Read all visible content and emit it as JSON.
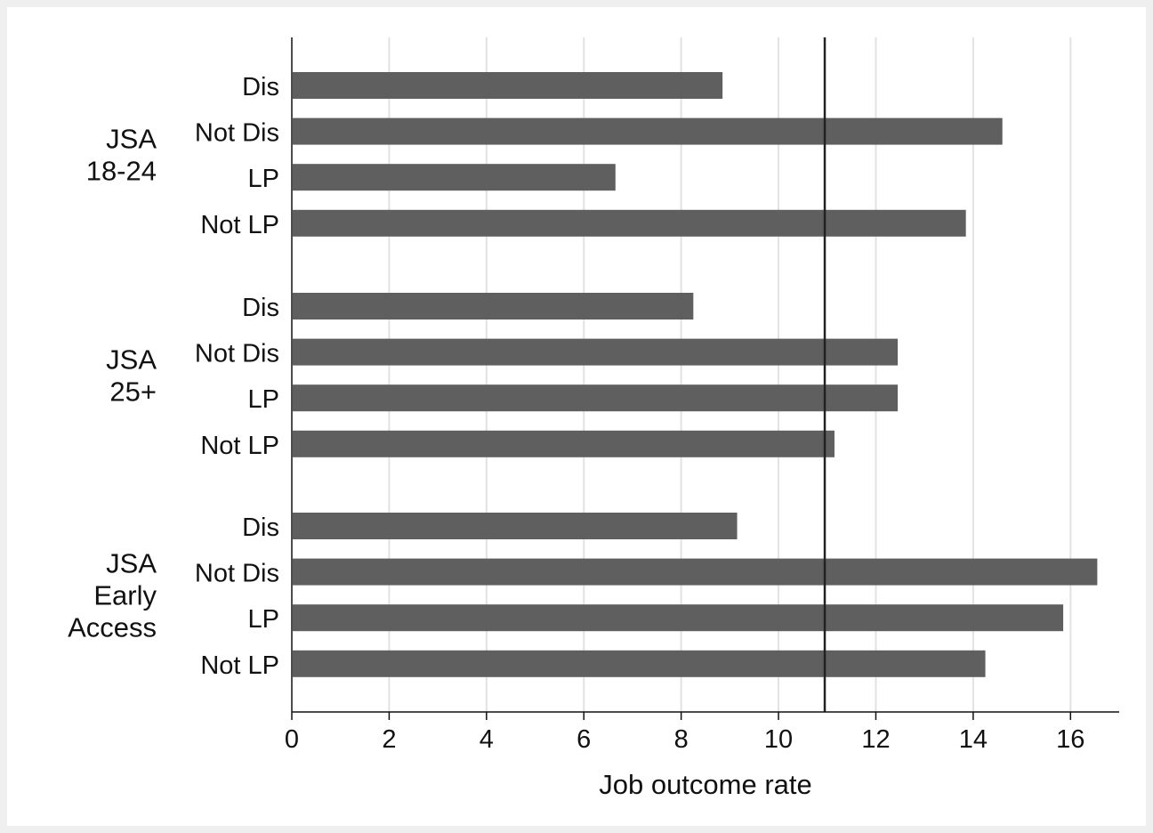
{
  "chart_data": {
    "type": "bar",
    "orientation": "horizontal",
    "xlabel": "Job outcome rate",
    "xlim": [
      0,
      17
    ],
    "xticks": [
      0,
      2,
      4,
      6,
      8,
      10,
      12,
      14,
      16
    ],
    "grid": true,
    "bar_color": "#5f5f5f",
    "reference_line": {
      "value": 10.95,
      "color": "#222222"
    },
    "groups": [
      {
        "label": [
          "JSA",
          "18-24"
        ],
        "categories": [
          "Dis",
          "Not Dis",
          "LP",
          "Not LP"
        ],
        "values": [
          8.85,
          14.6,
          6.65,
          13.85
        ]
      },
      {
        "label": [
          "JSA",
          "25+"
        ],
        "categories": [
          "Dis",
          "Not Dis",
          "LP",
          "Not LP"
        ],
        "values": [
          8.25,
          12.45,
          12.45,
          11.15
        ]
      },
      {
        "label": [
          "JSA",
          "Early",
          "Access"
        ],
        "categories": [
          "Dis",
          "Not Dis",
          "LP",
          "Not LP"
        ],
        "values": [
          9.15,
          16.55,
          15.85,
          14.25
        ]
      }
    ]
  }
}
